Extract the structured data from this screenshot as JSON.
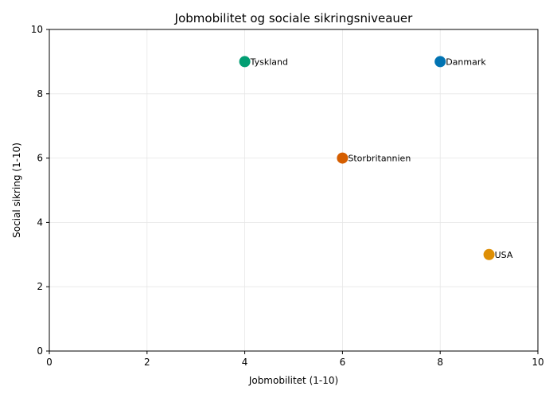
{
  "chart_data": {
    "type": "scatter",
    "title": "Jobmobilitet og sociale sikringsniveauer",
    "xlabel": "Jobmobilitet (1-10)",
    "ylabel": "Social sikring (1-10)",
    "xlim": [
      0,
      10
    ],
    "ylim": [
      0,
      10
    ],
    "xticks": [
      0,
      2,
      4,
      6,
      8,
      10
    ],
    "yticks": [
      0,
      2,
      4,
      6,
      8,
      10
    ],
    "grid": true,
    "points": [
      {
        "label": "Danmark",
        "x": 8,
        "y": 9,
        "color": "#0173b2"
      },
      {
        "label": "USA",
        "x": 9,
        "y": 3,
        "color": "#de8f05"
      },
      {
        "label": "Tyskland",
        "x": 4,
        "y": 9,
        "color": "#029e73"
      },
      {
        "label": "Storbritannien",
        "x": 6,
        "y": 6,
        "color": "#d55e00"
      }
    ]
  }
}
